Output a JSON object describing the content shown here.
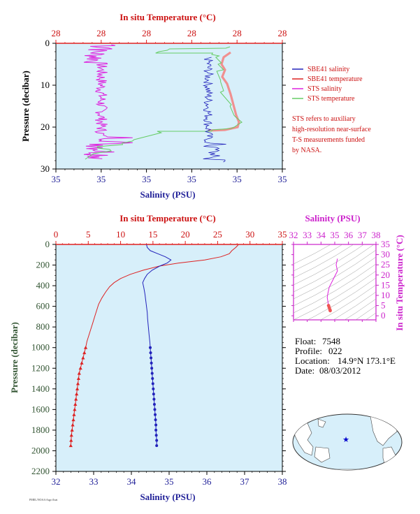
{
  "chart_data": [
    {
      "type": "line",
      "name": "near-surface profile",
      "title": "",
      "top_axis_label": "In situ Temperature (°C)",
      "top_ticks": [
        "28",
        "28",
        "28",
        "28",
        "28",
        "28"
      ],
      "bottom_axis_label": "Salinity (PSU)",
      "bottom_ticks": [
        "35",
        "35",
        "35",
        "35",
        "35",
        "35"
      ],
      "ylabel": "Pressure (decibar)",
      "y_ticks": [
        "0",
        "10",
        "20",
        "30"
      ],
      "ylim": [
        30,
        0
      ],
      "legend": [
        "SBE41 salinity",
        "SBE41 temperature",
        "STS salinity",
        "STS temperature"
      ],
      "legend_colors": [
        "#2222bb",
        "#dd2222",
        "#dd22dd",
        "#66cc66"
      ],
      "note": [
        "STS refers to auxiliary",
        "high-resolution near-surface",
        "T-S measurements funded",
        "by NASA."
      ]
    },
    {
      "type": "line",
      "name": "full profile",
      "top_axis_label": "In situ Temperature (°C)",
      "top_ticks": [
        "0",
        "5",
        "10",
        "15",
        "20",
        "25",
        "30",
        "35"
      ],
      "bottom_axis_label": "Salinity (PSU)",
      "bottom_ticks": [
        "32",
        "33",
        "34",
        "35",
        "36",
        "37",
        "38"
      ],
      "ylabel": "Pressure (decibar)",
      "y_ticks": [
        "0",
        "200",
        "400",
        "600",
        "800",
        "1000",
        "1200",
        "1400",
        "1600",
        "1800",
        "2000",
        "2200"
      ],
      "xlim_temperature": [
        0,
        35
      ],
      "xlim_salinity": [
        32,
        38
      ],
      "ylim": [
        2200,
        0
      ],
      "series": [
        {
          "name": "temperature",
          "color": "#dd2222",
          "points": [
            [
              28.2,
              0
            ],
            [
              28.1,
              10
            ],
            [
              27.8,
              30
            ],
            [
              27.2,
              60
            ],
            [
              26.8,
              90
            ],
            [
              25.5,
              120
            ],
            [
              23,
              150
            ],
            [
              19,
              180
            ],
            [
              16,
              210
            ],
            [
              13.5,
              250
            ],
            [
              11.5,
              290
            ],
            [
              10,
              330
            ],
            [
              9,
              370
            ],
            [
              8.3,
              410
            ],
            [
              7.7,
              460
            ],
            [
              7.1,
              520
            ],
            [
              6.6,
              580
            ],
            [
              6.3,
              640
            ],
            [
              6,
              700
            ],
            [
              5.7,
              760
            ],
            [
              5.4,
              820
            ],
            [
              5.1,
              880
            ],
            [
              4.8,
              940
            ],
            [
              4.6,
              1000
            ],
            [
              4.4,
              1050
            ],
            [
              4.2,
              1100
            ],
            [
              4,
              1150
            ],
            [
              3.8,
              1200
            ],
            [
              3.6,
              1250
            ],
            [
              3.5,
              1300
            ],
            [
              3.4,
              1350
            ],
            [
              3.3,
              1400
            ],
            [
              3.2,
              1450
            ],
            [
              3.1,
              1500
            ],
            [
              3,
              1550
            ],
            [
              2.9,
              1600
            ],
            [
              2.8,
              1650
            ],
            [
              2.7,
              1700
            ],
            [
              2.6,
              1750
            ],
            [
              2.5,
              1800
            ],
            [
              2.4,
              1850
            ],
            [
              2.35,
              1900
            ],
            [
              2.3,
              1950
            ]
          ],
          "marker_from": 1000
        },
        {
          "name": "salinity",
          "color": "#2222bb",
          "points": [
            [
              34.4,
              0
            ],
            [
              34.42,
              30
            ],
            [
              34.5,
              60
            ],
            [
              34.7,
              90
            ],
            [
              34.9,
              120
            ],
            [
              35.05,
              150
            ],
            [
              34.95,
              180
            ],
            [
              34.75,
              210
            ],
            [
              34.55,
              250
            ],
            [
              34.42,
              290
            ],
            [
              34.35,
              330
            ],
            [
              34.3,
              370
            ],
            [
              34.33,
              420
            ],
            [
              34.36,
              480
            ],
            [
              34.38,
              540
            ],
            [
              34.4,
              600
            ],
            [
              34.42,
              660
            ],
            [
              34.43,
              720
            ],
            [
              34.45,
              800
            ],
            [
              34.47,
              880
            ],
            [
              34.49,
              950
            ],
            [
              34.5,
              1000
            ],
            [
              34.51,
              1050
            ],
            [
              34.52,
              1100
            ],
            [
              34.53,
              1150
            ],
            [
              34.54,
              1200
            ],
            [
              34.55,
              1250
            ],
            [
              34.56,
              1300
            ],
            [
              34.57,
              1350
            ],
            [
              34.58,
              1400
            ],
            [
              34.59,
              1450
            ],
            [
              34.6,
              1500
            ],
            [
              34.61,
              1550
            ],
            [
              34.62,
              1600
            ],
            [
              34.63,
              1650
            ],
            [
              34.64,
              1700
            ],
            [
              34.65,
              1750
            ],
            [
              34.65,
              1800
            ],
            [
              34.66,
              1850
            ],
            [
              34.67,
              1900
            ],
            [
              34.67,
              1950
            ]
          ],
          "marker_from": 1000
        }
      ]
    },
    {
      "type": "scatter",
      "name": "T-S diagram",
      "top_axis_label": "Salinity (PSU)",
      "top_ticks": [
        "32",
        "33",
        "34",
        "35",
        "36",
        "37",
        "38"
      ],
      "right_axis_label": "In situ Temperature (°C)",
      "right_ticks": [
        "0",
        "5",
        "10",
        "15",
        "20",
        "25",
        "30",
        "35"
      ],
      "xlim": [
        32,
        38
      ],
      "ylim": [
        -2,
        35
      ],
      "points": [
        [
          35.2,
          28
        ],
        [
          35.1,
          25
        ],
        [
          35.2,
          22
        ],
        [
          34.9,
          18
        ],
        [
          34.6,
          14
        ],
        [
          34.5,
          11
        ],
        [
          34.45,
          9
        ],
        [
          34.5,
          7
        ],
        [
          34.55,
          5
        ],
        [
          34.6,
          4
        ],
        [
          34.65,
          3
        ],
        [
          34.67,
          2.5
        ]
      ]
    }
  ],
  "info": {
    "float_label": "Float:",
    "float_value": "7548",
    "profile_label": "Profile:",
    "profile_value": "022",
    "location_label": "Location:",
    "location_value": "14.9°N  173.1°E",
    "date_label": "Date:",
    "date_value": "08/03/2012"
  },
  "map": {
    "marker": "star",
    "marker_color": "#0000cc",
    "latitude": 14.9,
    "longitude": 173.1
  },
  "footer": "PMEL/NOAA Argo float"
}
